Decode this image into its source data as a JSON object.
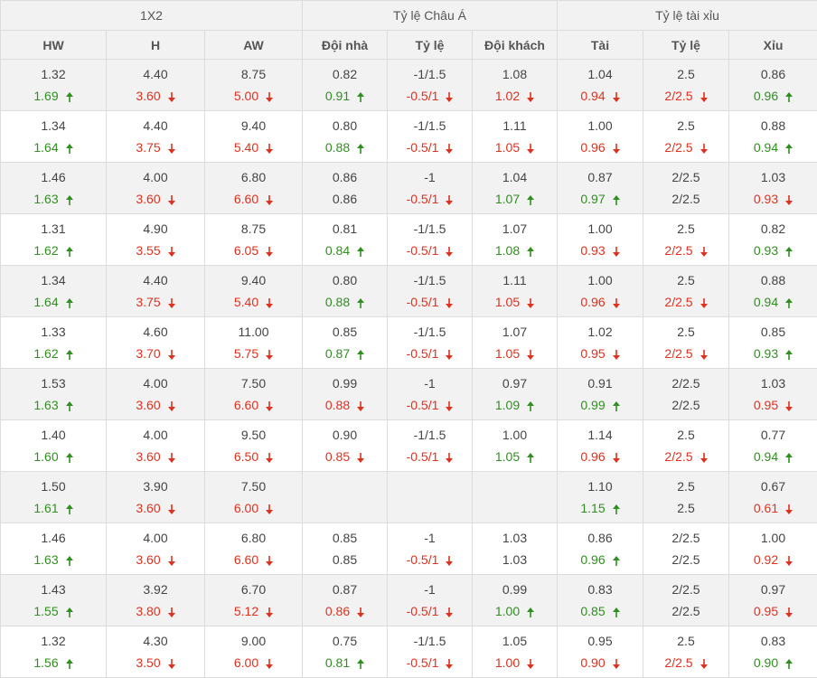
{
  "header": {
    "groups": [
      "1X2",
      "Tỷ lệ Châu Á",
      "Tỷ lệ tài xỉu"
    ],
    "columns": [
      "HW",
      "H",
      "AW",
      "Đội nhà",
      "Tỷ lệ",
      "Đội khách",
      "Tài",
      "Tỷ lệ",
      "Xỉu"
    ]
  },
  "colors": {
    "up": "#2f8f1f",
    "down": "#e0301e",
    "stripe": "#f2f2f2"
  },
  "icons": {
    "up": "arrow-up-icon",
    "down": "arrow-down-icon"
  },
  "rows": [
    [
      [
        "1.32",
        "1.69",
        "up"
      ],
      [
        "4.40",
        "3.60",
        "down"
      ],
      [
        "8.75",
        "5.00",
        "down"
      ],
      [
        "0.82",
        "0.91",
        "up"
      ],
      [
        "-1/1.5",
        "-0.5/1",
        "down"
      ],
      [
        "1.08",
        "1.02",
        "down"
      ],
      [
        "1.04",
        "0.94",
        "down"
      ],
      [
        "2.5",
        "2/2.5",
        "down"
      ],
      [
        "0.86",
        "0.96",
        "up"
      ]
    ],
    [
      [
        "1.34",
        "1.64",
        "up"
      ],
      [
        "4.40",
        "3.75",
        "down"
      ],
      [
        "9.40",
        "5.40",
        "down"
      ],
      [
        "0.80",
        "0.88",
        "up"
      ],
      [
        "-1/1.5",
        "-0.5/1",
        "down"
      ],
      [
        "1.11",
        "1.05",
        "down"
      ],
      [
        "1.00",
        "0.96",
        "down"
      ],
      [
        "2.5",
        "2/2.5",
        "down"
      ],
      [
        "0.88",
        "0.94",
        "up"
      ]
    ],
    [
      [
        "1.46",
        "1.63",
        "up"
      ],
      [
        "4.00",
        "3.60",
        "down"
      ],
      [
        "6.80",
        "6.60",
        "down"
      ],
      [
        "0.86",
        "0.86",
        ""
      ],
      [
        "-1",
        "-0.5/1",
        "down"
      ],
      [
        "1.04",
        "1.07",
        "up"
      ],
      [
        "0.87",
        "0.97",
        "up"
      ],
      [
        "2/2.5",
        "2/2.5",
        ""
      ],
      [
        "1.03",
        "0.93",
        "down"
      ]
    ],
    [
      [
        "1.31",
        "1.62",
        "up"
      ],
      [
        "4.90",
        "3.55",
        "down"
      ],
      [
        "8.75",
        "6.05",
        "down"
      ],
      [
        "0.81",
        "0.84",
        "up"
      ],
      [
        "-1/1.5",
        "-0.5/1",
        "down"
      ],
      [
        "1.07",
        "1.08",
        "up"
      ],
      [
        "1.00",
        "0.93",
        "down"
      ],
      [
        "2.5",
        "2/2.5",
        "down"
      ],
      [
        "0.82",
        "0.93",
        "up"
      ]
    ],
    [
      [
        "1.34",
        "1.64",
        "up"
      ],
      [
        "4.40",
        "3.75",
        "down"
      ],
      [
        "9.40",
        "5.40",
        "down"
      ],
      [
        "0.80",
        "0.88",
        "up"
      ],
      [
        "-1/1.5",
        "-0.5/1",
        "down"
      ],
      [
        "1.11",
        "1.05",
        "down"
      ],
      [
        "1.00",
        "0.96",
        "down"
      ],
      [
        "2.5",
        "2/2.5",
        "down"
      ],
      [
        "0.88",
        "0.94",
        "up"
      ]
    ],
    [
      [
        "1.33",
        "1.62",
        "up"
      ],
      [
        "4.60",
        "3.70",
        "down"
      ],
      [
        "11.00",
        "5.75",
        "down"
      ],
      [
        "0.85",
        "0.87",
        "up"
      ],
      [
        "-1/1.5",
        "-0.5/1",
        "down"
      ],
      [
        "1.07",
        "1.05",
        "down"
      ],
      [
        "1.02",
        "0.95",
        "down"
      ],
      [
        "2.5",
        "2/2.5",
        "down"
      ],
      [
        "0.85",
        "0.93",
        "up"
      ]
    ],
    [
      [
        "1.53",
        "1.63",
        "up"
      ],
      [
        "4.00",
        "3.60",
        "down"
      ],
      [
        "7.50",
        "6.60",
        "down"
      ],
      [
        "0.99",
        "0.88",
        "down"
      ],
      [
        "-1",
        "-0.5/1",
        "down"
      ],
      [
        "0.97",
        "1.09",
        "up"
      ],
      [
        "0.91",
        "0.99",
        "up"
      ],
      [
        "2/2.5",
        "2/2.5",
        ""
      ],
      [
        "1.03",
        "0.95",
        "down"
      ]
    ],
    [
      [
        "1.40",
        "1.60",
        "up"
      ],
      [
        "4.00",
        "3.60",
        "down"
      ],
      [
        "9.50",
        "6.50",
        "down"
      ],
      [
        "0.90",
        "0.85",
        "down"
      ],
      [
        "-1/1.5",
        "-0.5/1",
        "down"
      ],
      [
        "1.00",
        "1.05",
        "up"
      ],
      [
        "1.14",
        "0.96",
        "down"
      ],
      [
        "2.5",
        "2/2.5",
        "down"
      ],
      [
        "0.77",
        "0.94",
        "up"
      ]
    ],
    [
      [
        "1.50",
        "1.61",
        "up"
      ],
      [
        "3.90",
        "3.60",
        "down"
      ],
      [
        "7.50",
        "6.00",
        "down"
      ],
      [
        "",
        "",
        ""
      ],
      [
        "",
        "",
        ""
      ],
      [
        "",
        "",
        ""
      ],
      [
        "1.10",
        "1.15",
        "up"
      ],
      [
        "2.5",
        "2.5",
        ""
      ],
      [
        "0.67",
        "0.61",
        "down"
      ]
    ],
    [
      [
        "1.46",
        "1.63",
        "up"
      ],
      [
        "4.00",
        "3.60",
        "down"
      ],
      [
        "6.80",
        "6.60",
        "down"
      ],
      [
        "0.85",
        "0.85",
        ""
      ],
      [
        "-1",
        "-0.5/1",
        "down"
      ],
      [
        "1.03",
        "1.03",
        ""
      ],
      [
        "0.86",
        "0.96",
        "up"
      ],
      [
        "2/2.5",
        "2/2.5",
        ""
      ],
      [
        "1.00",
        "0.92",
        "down"
      ]
    ],
    [
      [
        "1.43",
        "1.55",
        "up"
      ],
      [
        "3.92",
        "3.80",
        "down"
      ],
      [
        "6.70",
        "5.12",
        "down"
      ],
      [
        "0.87",
        "0.86",
        "down"
      ],
      [
        "-1",
        "-0.5/1",
        "down"
      ],
      [
        "0.99",
        "1.00",
        "up"
      ],
      [
        "0.83",
        "0.85",
        "up"
      ],
      [
        "2/2.5",
        "2/2.5",
        ""
      ],
      [
        "0.97",
        "0.95",
        "down"
      ]
    ],
    [
      [
        "1.32",
        "1.56",
        "up"
      ],
      [
        "4.30",
        "3.50",
        "down"
      ],
      [
        "9.00",
        "6.00",
        "down"
      ],
      [
        "0.75",
        "0.81",
        "up"
      ],
      [
        "-1/1.5",
        "-0.5/1",
        "down"
      ],
      [
        "1.05",
        "1.00",
        "down"
      ],
      [
        "0.95",
        "0.90",
        "down"
      ],
      [
        "2.5",
        "2/2.5",
        "down"
      ],
      [
        "0.83",
        "0.90",
        "up"
      ]
    ]
  ]
}
